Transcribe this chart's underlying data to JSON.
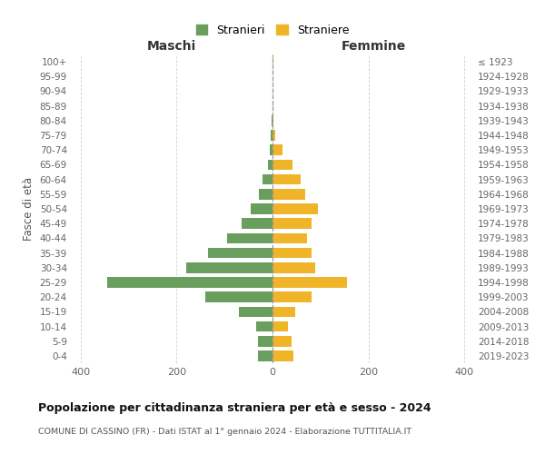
{
  "age_groups": [
    "0-4",
    "5-9",
    "10-14",
    "15-19",
    "20-24",
    "25-29",
    "30-34",
    "35-39",
    "40-44",
    "45-49",
    "50-54",
    "55-59",
    "60-64",
    "65-69",
    "70-74",
    "75-79",
    "80-84",
    "85-89",
    "90-94",
    "95-99",
    "100+"
  ],
  "birth_years": [
    "2019-2023",
    "2014-2018",
    "2009-2013",
    "2004-2008",
    "1999-2003",
    "1994-1998",
    "1989-1993",
    "1984-1988",
    "1979-1983",
    "1974-1978",
    "1969-1973",
    "1964-1968",
    "1959-1963",
    "1954-1958",
    "1949-1953",
    "1944-1948",
    "1939-1943",
    "1934-1938",
    "1929-1933",
    "1924-1928",
    "≤ 1923"
  ],
  "males": [
    30,
    30,
    35,
    70,
    140,
    345,
    180,
    135,
    95,
    65,
    45,
    28,
    20,
    10,
    6,
    3,
    1,
    0,
    0,
    0,
    0
  ],
  "females": [
    44,
    40,
    32,
    48,
    82,
    155,
    88,
    82,
    72,
    82,
    95,
    68,
    58,
    42,
    20,
    5,
    2,
    1,
    0,
    0,
    1
  ],
  "male_color": "#6a9e5e",
  "female_color": "#f0b429",
  "male_label": "Stranieri",
  "female_label": "Straniere",
  "title": "Popolazione per cittadinanza straniera per età e sesso - 2024",
  "subtitle": "COMUNE DI CASSINO (FR) - Dati ISTAT al 1° gennaio 2024 - Elaborazione TUTTITALIA.IT",
  "xlabel_left": "Maschi",
  "xlabel_right": "Femmine",
  "ylabel_left": "Fasce di età",
  "xlim": 420,
  "xticks": [
    -400,
    -200,
    0,
    200,
    400
  ],
  "background_color": "#ffffff",
  "grid_color": "#d0d0d0"
}
